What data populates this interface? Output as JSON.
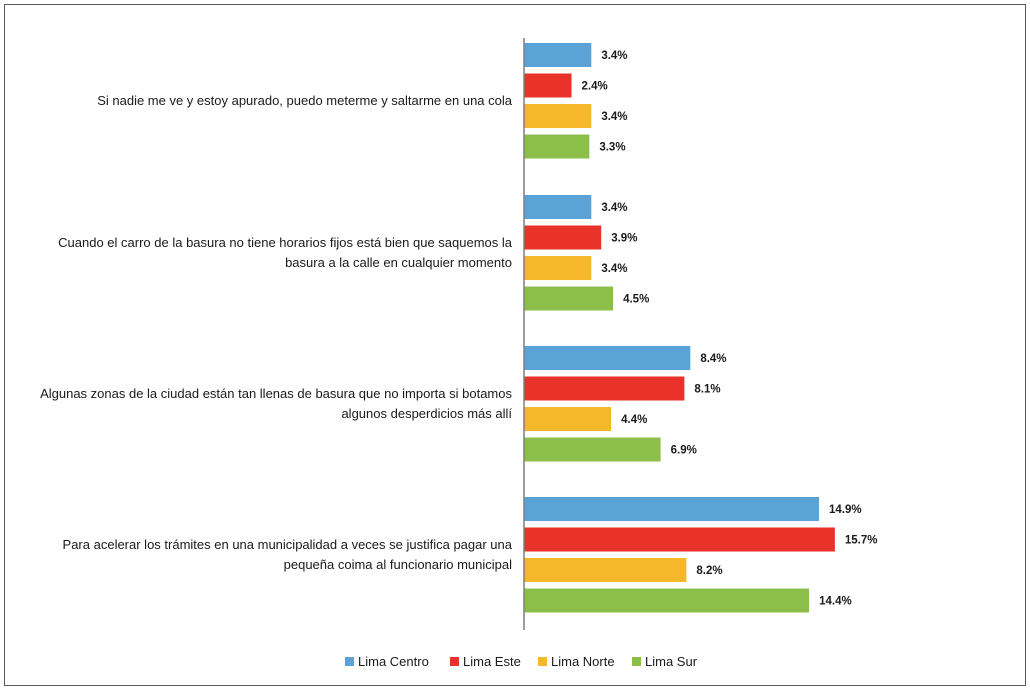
{
  "chart_data": {
    "type": "bar",
    "orientation": "horizontal",
    "categories": [
      [
        "Si nadie me ve y estoy apurado, puedo meterme y saltarme en una cola"
      ],
      [
        "Cuando el carro de la basura no tiene horarios fijos está bien que saquemos la",
        "basura a la calle en cualquier momento"
      ],
      [
        "Algunas zonas de la ciudad están tan llenas de basura que no importa si botamos",
        "algunos desperdicios más allí"
      ],
      [
        "Para acelerar los trámites en una municipalidad a veces se justifica pagar una",
        "pequeña coima al funcionario municipal"
      ]
    ],
    "series": [
      {
        "name": "Lima Centro",
        "color": "#5ba3d6",
        "values": [
          3.4,
          3.4,
          8.4,
          14.9
        ],
        "labels": [
          "3.4%",
          "3.4%",
          "8.4%",
          "14.9%"
        ]
      },
      {
        "name": "Lima Este",
        "color": "#e8322a",
        "values": [
          2.4,
          3.9,
          8.1,
          15.7
        ],
        "labels": [
          "2.4%",
          "3.9%",
          "8.1%",
          "15.7%"
        ]
      },
      {
        "name": "Lima Norte",
        "color": "#f7b72a",
        "values": [
          3.4,
          3.4,
          4.4,
          8.2
        ],
        "labels": [
          "3.4%",
          "3.4%",
          "4.4%",
          "8.2%"
        ]
      },
      {
        "name": "Lima Sur",
        "color": "#8cbf4a",
        "values": [
          3.3,
          4.5,
          6.9,
          14.4
        ],
        "labels": [
          "3.3%",
          "4.5%",
          "6.9%",
          "14.4%"
        ]
      }
    ],
    "xlim": [
      0,
      16
    ],
    "legend_position": "bottom",
    "grid": false,
    "axis_color": "#7f7f7f"
  }
}
